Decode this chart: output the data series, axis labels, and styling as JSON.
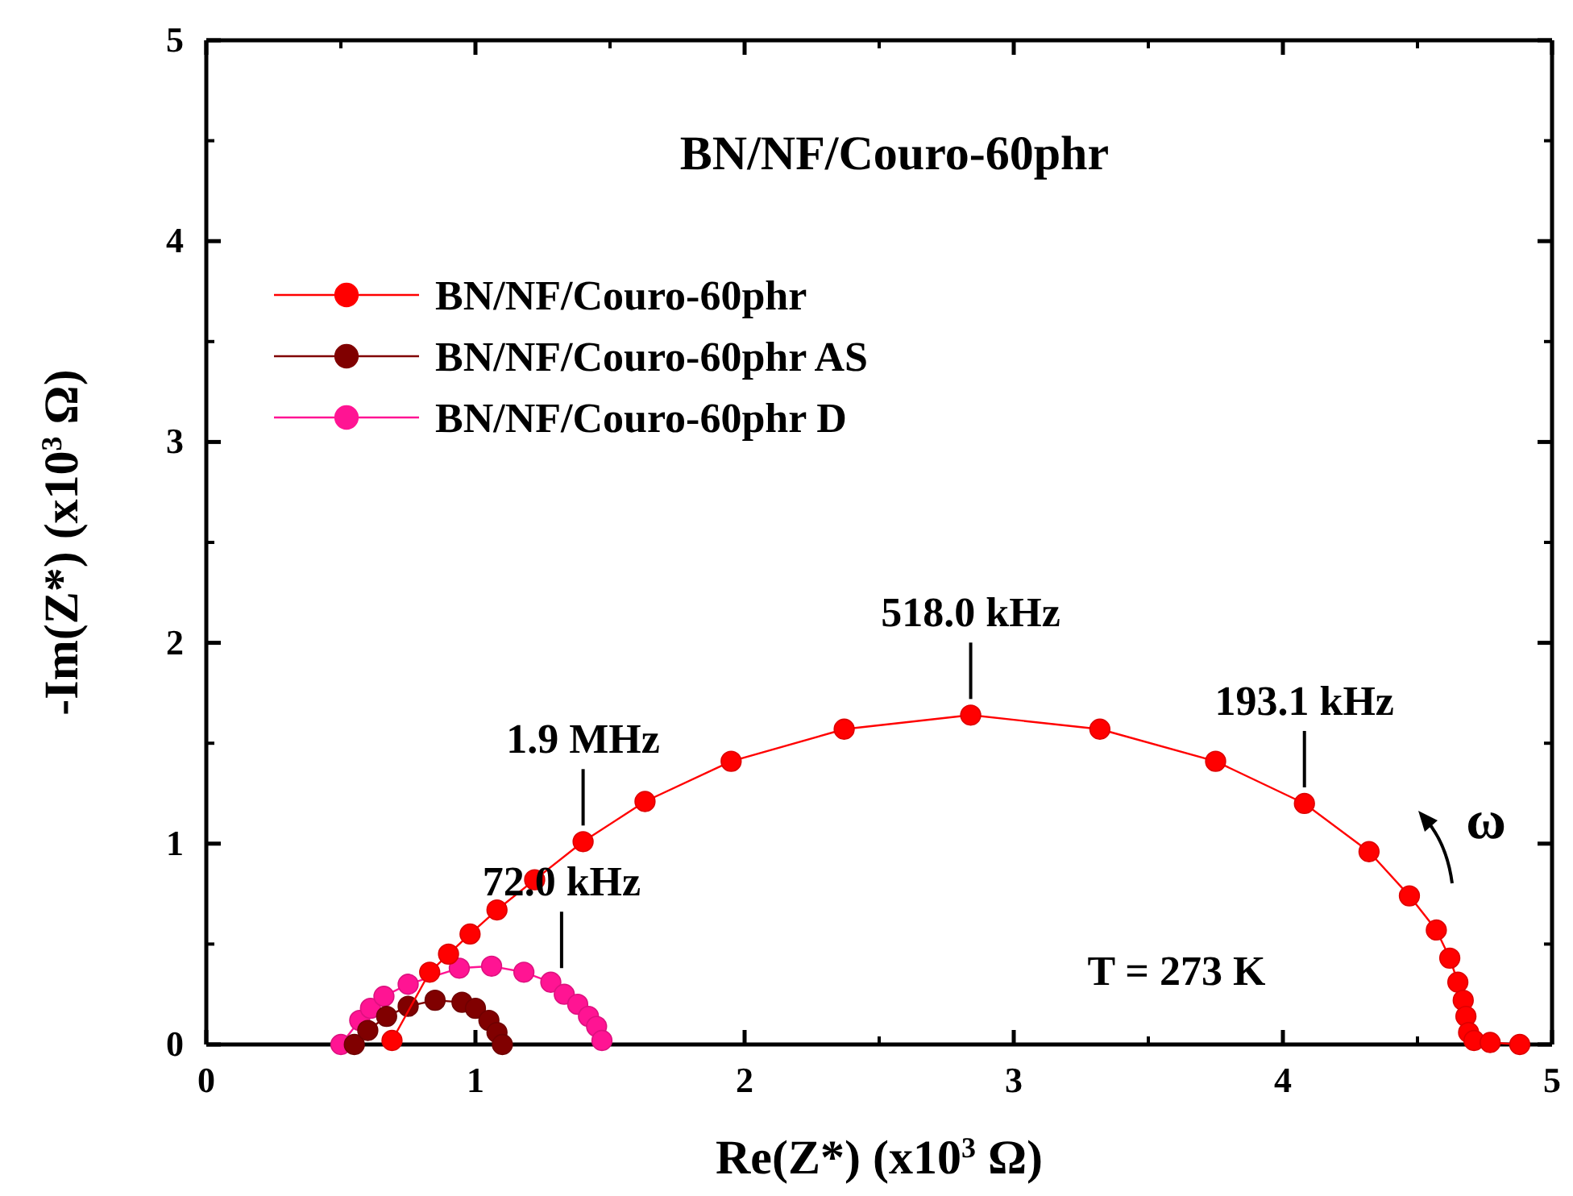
{
  "chart_data": {
    "type": "line",
    "title": "BN/NF/Couro-60phr",
    "xlabel": "Re(Z*) (x10$^{3}$ Ω)",
    "ylabel": "-Im(Z*) (x10$^{3}$ Ω)",
    "xlim": [
      0,
      5
    ],
    "ylim": [
      0,
      5
    ],
    "xticks": [
      0,
      1,
      2,
      3,
      4,
      5
    ],
    "yticks": [
      0,
      1,
      2,
      3,
      4,
      5
    ],
    "grid": false,
    "legend": "top left",
    "marker": "circle",
    "line_style": "solid",
    "series": [
      {
        "name": "BN/NF/Couro-60phr",
        "color": "#ff0000",
        "x": [
          0.69,
          0.83,
          0.9,
          0.98,
          1.08,
          1.22,
          1.4,
          1.63,
          1.95,
          2.37,
          2.84,
          3.32,
          3.75,
          4.08,
          4.32,
          4.47,
          4.57,
          4.62,
          4.65,
          4.67,
          4.68,
          4.69,
          4.71,
          4.77,
          4.88
        ],
        "values": [
          0.02,
          0.36,
          0.45,
          0.55,
          0.67,
          0.82,
          1.01,
          1.21,
          1.41,
          1.57,
          1.64,
          1.57,
          1.41,
          1.2,
          0.96,
          0.74,
          0.57,
          0.43,
          0.31,
          0.22,
          0.14,
          0.06,
          0.02,
          0.01,
          0
        ]
      },
      {
        "name": "BN/NF/Couro-60phr AS",
        "color": "#800000",
        "x": [
          0.55,
          0.6,
          0.67,
          0.75,
          0.85,
          0.95,
          1.0,
          1.05,
          1.08,
          1.1
        ],
        "values": [
          0,
          0.07,
          0.14,
          0.19,
          0.22,
          0.21,
          0.18,
          0.12,
          0.06,
          0
        ]
      },
      {
        "name": "BN/NF/Couro-60phr D",
        "color": "#ff1493",
        "x": [
          0.5,
          0.57,
          0.61,
          0.66,
          0.75,
          0.94,
          1.06,
          1.18,
          1.28,
          1.33,
          1.38,
          1.42,
          1.45,
          1.47
        ],
        "values": [
          0,
          0.12,
          0.18,
          0.24,
          0.3,
          0.38,
          0.39,
          0.36,
          0.31,
          0.25,
          0.2,
          0.14,
          0.09,
          0.02
        ]
      }
    ],
    "annotations": [
      {
        "text": "1.9 MHz",
        "x": 1.4,
        "y": 1.01
      },
      {
        "text": "518.0 kHz",
        "x": 2.84,
        "y": 1.64
      },
      {
        "text": "193.1 kHz",
        "x": 4.08,
        "y": 1.2
      },
      {
        "text": "72.0 kHz",
        "x": 1.32,
        "y": 0.3
      },
      "T = 273 K",
      "ω"
    ]
  }
}
